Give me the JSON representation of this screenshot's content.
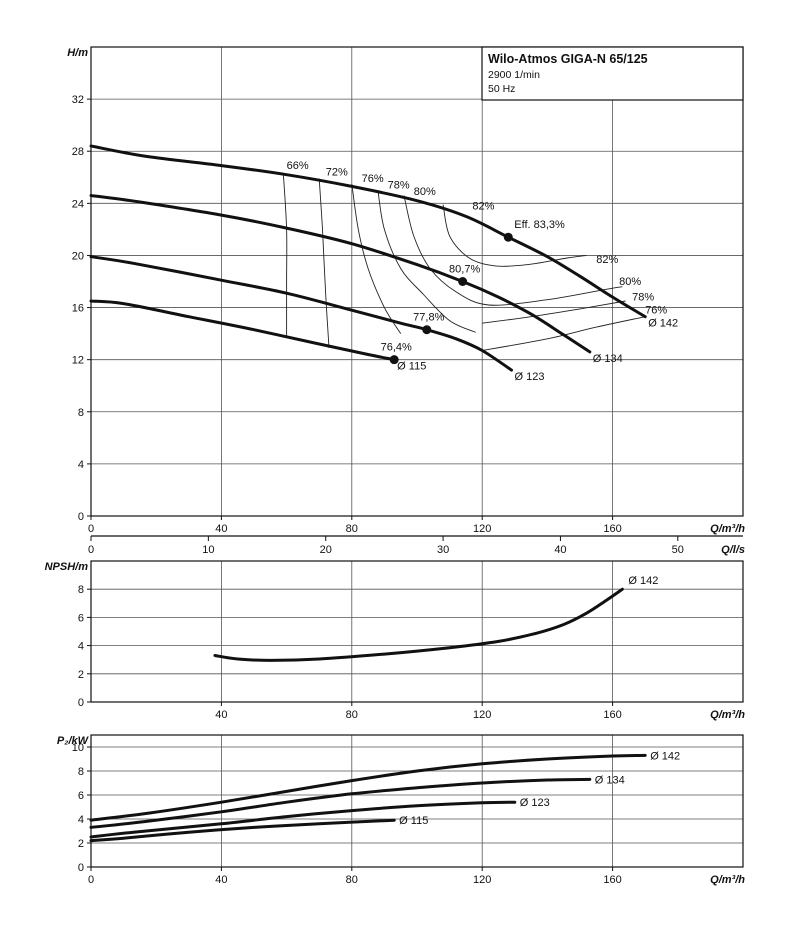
{
  "chart_data": [
    {
      "id": "head",
      "type": "line",
      "title": "Wilo-Atmos GIGA-N 65/125",
      "subtitle_lines": [
        "2900 1/min",
        "50 Hz"
      ],
      "ylabel": "H/m",
      "xlabel": "Q/m³/h",
      "xlim": [
        0,
        200
      ],
      "ylim": [
        0,
        36
      ],
      "xticks": [
        0,
        40,
        80,
        120,
        160
      ],
      "yticks": [
        0,
        4,
        8,
        12,
        16,
        20,
        24,
        28,
        32
      ],
      "grid": true,
      "secondary_x": {
        "label": "Q/l/s",
        "ticks": [
          0,
          10,
          20,
          30,
          40,
          50
        ],
        "factor": 3.6
      },
      "series": [
        {
          "name": "Ø 142",
          "x": [
            0,
            17,
            40,
            60,
            80,
            100,
            115,
            128,
            140,
            150,
            160,
            170
          ],
          "y": [
            28.4,
            27.6,
            26.9,
            26.2,
            25.3,
            24.2,
            23.0,
            21.4,
            19.9,
            18.4,
            16.8,
            15.3
          ]
        },
        {
          "name": "Ø 134",
          "x": [
            0,
            15,
            40,
            60,
            80,
            100,
            114,
            125,
            135,
            145,
            153
          ],
          "y": [
            24.6,
            24.1,
            23.1,
            22.1,
            20.9,
            19.3,
            18.0,
            16.8,
            15.5,
            13.9,
            12.6
          ]
        },
        {
          "name": "Ø 123",
          "x": [
            0,
            13,
            40,
            60,
            80,
            95,
            103,
            112,
            120,
            129
          ],
          "y": [
            19.9,
            19.4,
            18.1,
            17.1,
            15.8,
            14.8,
            14.3,
            13.6,
            12.7,
            11.2
          ]
        },
        {
          "name": "Ø 115",
          "x": [
            0,
            10,
            30,
            50,
            70,
            85,
            93
          ],
          "y": [
            16.5,
            16.3,
            15.3,
            14.3,
            13.2,
            12.4,
            12.0
          ]
        }
      ],
      "efficiency_points": [
        {
          "label": "Eff. 83,3%",
          "x": 128,
          "y": 21.4
        },
        {
          "label": "80,7%",
          "x": 114,
          "y": 18.0
        },
        {
          "label": "77,8%",
          "x": 103,
          "y": 14.3
        },
        {
          "label": "76,4%",
          "x": 93,
          "y": 12.0
        }
      ],
      "iso_efficiency": [
        {
          "label": "66%",
          "label_x": 60,
          "label_y": 26.4,
          "x": [
            59,
            60,
            60,
            60
          ],
          "y": [
            26.3,
            22,
            18,
            13.7
          ]
        },
        {
          "label": "72%",
          "label_x": 72,
          "label_y": 25.9,
          "x": [
            70,
            71,
            72,
            73
          ],
          "y": [
            25.9,
            22,
            17,
            12.9
          ]
        },
        {
          "label": "76%",
          "label_x": 83,
          "label_y": 25.4,
          "x": [
            80,
            82,
            85,
            90,
            95
          ],
          "y": [
            25.5,
            22,
            19,
            16,
            14.0
          ]
        },
        {
          "label": "78%",
          "label_x": 91,
          "label_y": 24.9,
          "x": [
            88,
            90,
            95,
            102,
            110,
            118
          ],
          "y": [
            25.0,
            22,
            19,
            17,
            15,
            14.1
          ]
        },
        {
          "label": "80%",
          "label_x": 99,
          "label_y": 24.4,
          "x": [
            96,
            99,
            104,
            112,
            122,
            140,
            158,
            163
          ],
          "y": [
            24.6,
            21.5,
            19,
            17.2,
            16.2,
            16.6,
            17.4,
            17.6
          ]
        },
        {
          "label": "82%",
          "label_x": 117,
          "label_y": 23.3,
          "x": [
            108,
            110,
            116,
            124,
            134,
            146,
            152
          ],
          "y": [
            23.9,
            21.5,
            19.8,
            19.2,
            19.3,
            19.8,
            20.0
          ]
        },
        {
          "label": "78%",
          "label_x": 166,
          "label_y": 16.3,
          "x": [
            120,
            135,
            150,
            164
          ],
          "y": [
            14.8,
            15.3,
            15.9,
            16.5
          ]
        },
        {
          "label": "76%",
          "label_x": 170,
          "label_y": 15.3,
          "x": [
            120,
            140,
            155,
            170
          ],
          "y": [
            12.7,
            13.6,
            14.5,
            15.3
          ]
        }
      ],
      "extra_labels": [
        {
          "label": "82%",
          "x": 155,
          "y": 19.2
        },
        {
          "label": "80%",
          "x": 162,
          "y": 17.5
        }
      ]
    },
    {
      "id": "npsh",
      "type": "line",
      "ylabel": "NPSH/m",
      "xlabel": "Q/m³/h",
      "xlim": [
        0,
        200
      ],
      "ylim": [
        0,
        10
      ],
      "xticks": [
        40,
        80,
        120,
        160
      ],
      "yticks": [
        0,
        2,
        4,
        6,
        8
      ],
      "grid": true,
      "series": [
        {
          "name": "Ø 142",
          "x": [
            38,
            45,
            55,
            70,
            90,
            110,
            125,
            137,
            145,
            152,
            158,
            163
          ],
          "y": [
            3.3,
            3.05,
            2.95,
            3.05,
            3.4,
            3.85,
            4.3,
            4.9,
            5.5,
            6.3,
            7.2,
            8.0
          ]
        }
      ]
    },
    {
      "id": "power",
      "type": "line",
      "ylabel": "P₂/kW",
      "xlabel": "Q/m³/h",
      "xlim": [
        0,
        200
      ],
      "ylim": [
        0,
        11
      ],
      "xticks": [
        0,
        40,
        80,
        120,
        160
      ],
      "yticks": [
        0,
        2,
        4,
        6,
        8,
        10
      ],
      "grid": true,
      "series": [
        {
          "name": "Ø 142",
          "x": [
            0,
            18,
            40,
            60,
            80,
            100,
            120,
            140,
            160,
            170
          ],
          "y": [
            3.9,
            4.5,
            5.4,
            6.3,
            7.2,
            8.0,
            8.6,
            9.0,
            9.25,
            9.3
          ]
        },
        {
          "name": "Ø 134",
          "x": [
            0,
            17,
            40,
            60,
            80,
            100,
            120,
            140,
            153
          ],
          "y": [
            3.3,
            3.8,
            4.6,
            5.4,
            6.1,
            6.6,
            7.0,
            7.25,
            7.3
          ]
        },
        {
          "name": "Ø 123",
          "x": [
            0,
            13,
            40,
            60,
            80,
            100,
            120,
            130
          ],
          "y": [
            2.5,
            2.9,
            3.6,
            4.2,
            4.7,
            5.1,
            5.35,
            5.4
          ]
        },
        {
          "name": "Ø 115",
          "x": [
            0,
            10,
            30,
            50,
            70,
            93
          ],
          "y": [
            2.2,
            2.4,
            2.9,
            3.3,
            3.6,
            3.9
          ]
        }
      ]
    }
  ]
}
